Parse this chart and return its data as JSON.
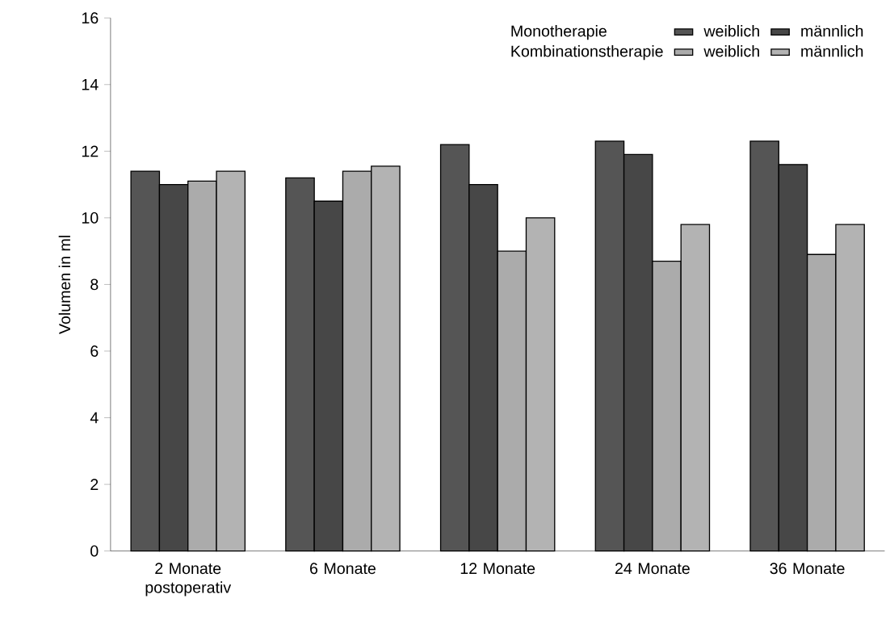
{
  "chart_data": {
    "type": "bar",
    "ylabel": "Volumen in ml",
    "categories": [
      "2 Monate postoperativ",
      "6 Monate",
      "12 Monate",
      "24 Monate",
      "36 Monate"
    ],
    "series": [
      {
        "name": "weiblich",
        "color": "#555555",
        "values": [
          11.4,
          11.2,
          12.2,
          12.3,
          12.3
        ]
      },
      {
        "name": "männlich",
        "color": "#474747",
        "values": [
          11.0,
          10.5,
          11.0,
          11.9,
          11.6
        ]
      },
      {
        "name": "weiblich",
        "color": "#ababab",
        "values": [
          11.1,
          11.4,
          9.0,
          8.7,
          8.9
        ]
      },
      {
        "name": "männlich",
        "color": "#b3b3b3",
        "values": [
          11.4,
          11.55,
          10.0,
          9.8,
          9.8
        ]
      }
    ],
    "annotations": [
      "Monotherapie",
      "Kombinationstherapie"
    ],
    "ylim": [
      0,
      16
    ],
    "yticks": [
      0,
      2,
      4,
      6,
      8,
      10,
      12,
      14,
      16
    ],
    "grid": false,
    "legend": "top right"
  }
}
